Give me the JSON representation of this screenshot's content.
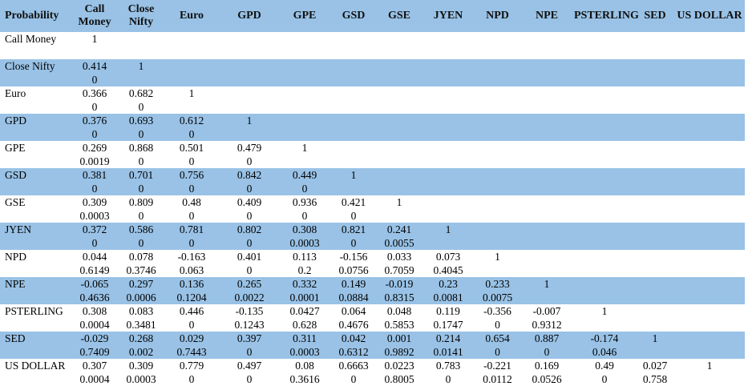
{
  "table": {
    "headers": [
      "Probability",
      "Call Money",
      "Close Nifty",
      "Euro",
      "GPD",
      "GPE",
      "GSD",
      "GSE",
      "JYEN",
      "NPD",
      "NPE",
      "PSTERLING",
      "SED",
      "US DOLLAR"
    ],
    "header_display": [
      "Probability",
      "Call\nMoney",
      "Close\nNifty",
      "Euro",
      "GPD",
      "GPE",
      "GSD",
      "GSE",
      "JYEN",
      "NPD",
      "NPE",
      "PSTERLING",
      "SED",
      "US DOLLAR"
    ],
    "rows": [
      {
        "label": "Call Money",
        "corr": [
          "1",
          "",
          "",
          "",
          "",
          "",
          "",
          "",
          "",
          "",
          "",
          "",
          ""
        ],
        "prob": [
          "",
          "",
          "",
          "",
          "",
          "",
          "",
          "",
          "",
          "",
          "",
          "",
          ""
        ]
      },
      {
        "label": "Close Nifty",
        "corr": [
          "0.414",
          "1",
          "",
          "",
          "",
          "",
          "",
          "",
          "",
          "",
          "",
          "",
          ""
        ],
        "prob": [
          "0",
          "",
          "",
          "",
          "",
          "",
          "",
          "",
          "",
          "",
          "",
          "",
          ""
        ]
      },
      {
        "label": "Euro",
        "corr": [
          "0.366",
          "0.682",
          "1",
          "",
          "",
          "",
          "",
          "",
          "",
          "",
          "",
          "",
          ""
        ],
        "prob": [
          "0",
          "0",
          "",
          "",
          "",
          "",
          "",
          "",
          "",
          "",
          "",
          "",
          ""
        ]
      },
      {
        "label": "GPD",
        "corr": [
          "0.376",
          "0.693",
          "0.612",
          "1",
          "",
          "",
          "",
          "",
          "",
          "",
          "",
          "",
          ""
        ],
        "prob": [
          "0",
          "0",
          "0",
          "",
          "",
          "",
          "",
          "",
          "",
          "",
          "",
          "",
          ""
        ]
      },
      {
        "label": "GPE",
        "corr": [
          "0.269",
          "0.868",
          "0.501",
          "0.479",
          "1",
          "",
          "",
          "",
          "",
          "",
          "",
          "",
          ""
        ],
        "prob": [
          "0.0019",
          "0",
          "0",
          "0",
          "",
          "",
          "",
          "",
          "",
          "",
          "",
          "",
          ""
        ]
      },
      {
        "label": "GSD",
        "corr": [
          "0.381",
          "0.701",
          "0.756",
          "0.842",
          "0.449",
          "1",
          "",
          "",
          "",
          "",
          "",
          "",
          ""
        ],
        "prob": [
          "0",
          "0",
          "0",
          "0",
          "0",
          "",
          "",
          "",
          "",
          "",
          "",
          "",
          ""
        ]
      },
      {
        "label": "GSE",
        "corr": [
          "0.309",
          "0.809",
          "0.48",
          "0.409",
          "0.936",
          "0.421",
          "1",
          "",
          "",
          "",
          "",
          "",
          ""
        ],
        "prob": [
          "0.0003",
          "0",
          "0",
          "0",
          "0",
          "0",
          "",
          "",
          "",
          "",
          "",
          "",
          ""
        ]
      },
      {
        "label": "JYEN",
        "corr": [
          "0.372",
          "0.586",
          "0.781",
          "0.802",
          "0.308",
          "0.821",
          "0.241",
          "1",
          "",
          "",
          "",
          "",
          ""
        ],
        "prob": [
          "0",
          "0",
          "0",
          "0",
          "0.0003",
          "0",
          "0.0055",
          "",
          "",
          "",
          "",
          "",
          ""
        ]
      },
      {
        "label": "NPD",
        "corr": [
          "0.044",
          "0.078",
          "-0.163",
          "0.401",
          "0.113",
          "-0.156",
          "0.033",
          "0.073",
          "1",
          "",
          "",
          "",
          ""
        ],
        "prob": [
          "0.6149",
          "0.3746",
          "0.063",
          "0",
          "0.2",
          "0.0756",
          "0.7059",
          "0.4045",
          "",
          "",
          "",
          "",
          ""
        ]
      },
      {
        "label": "NPE",
        "corr": [
          "-0.065",
          "0.297",
          "0.136",
          "0.265",
          "0.332",
          "0.149",
          "-0.019",
          "0.23",
          "0.233",
          "1",
          "",
          "",
          ""
        ],
        "prob": [
          "0.4636",
          "0.0006",
          "0.1204",
          "0.0022",
          "0.0001",
          "0.0884",
          "0.8315",
          "0.0081",
          "0.0075",
          "",
          "",
          "",
          ""
        ]
      },
      {
        "label": "PSTERLING",
        "corr": [
          "0.308",
          "0.083",
          "0.446",
          "-0.135",
          "0.0427",
          "0.064",
          "0.048",
          "0.119",
          "-0.356",
          "-0.007",
          "1",
          "",
          ""
        ],
        "prob": [
          "0.0004",
          "0.3481",
          "0",
          "0.1243",
          "0.628",
          "0.4676",
          "0.5853",
          "0.1747",
          "0",
          "0.9312",
          "",
          "",
          ""
        ]
      },
      {
        "label": "SED",
        "corr": [
          "-0.029",
          "0.268",
          "0.029",
          "0.397",
          "0.311",
          "0.042",
          "0.001",
          "0.214",
          "0.654",
          "0.887",
          "-0.174",
          "1",
          ""
        ],
        "prob": [
          "0.7409",
          "0.002",
          "0.7443",
          "0",
          "0.0003",
          "0.6312",
          "0.9892",
          "0.0141",
          "0",
          "0",
          "0.046",
          "",
          ""
        ]
      },
      {
        "label": "US DOLLAR",
        "corr": [
          "0.307",
          "0.309",
          "0.779",
          "0.497",
          "0.08",
          "0.6663",
          "0.0223",
          "0.783",
          "-0.221",
          "0.169",
          "0.49",
          "0.027",
          "1"
        ],
        "prob": [
          "0.0004",
          "0.0003",
          "0",
          "0",
          "0.3616",
          "0",
          "0.8005",
          "0",
          "0.0112",
          "0.0526",
          "0",
          "0.758",
          ""
        ]
      }
    ]
  },
  "colors": {
    "shade": "#99c2e6",
    "background": "#ffffff",
    "text": "#000000"
  }
}
